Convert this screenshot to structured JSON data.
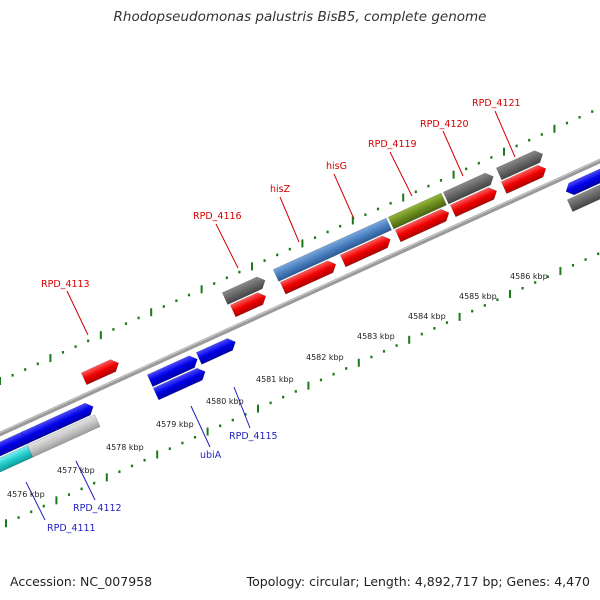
{
  "title": "Rhodopseudomonas palustris BisB5, complete genome",
  "accession": "Accession: NC_007958",
  "summary": "Topology: circular; Length: 4,892,717 bp; Genes: 4,470",
  "colors": {
    "forward_strand": "#e00000",
    "reverse_strand": "#0000dd",
    "hypothetical": "#666666",
    "hisZ": "#3a6fb0",
    "hisG_region": "#6b8c1e",
    "light_gene": "#bcbcbc",
    "cyan_gene": "#22cccc",
    "tick_green": "#1a7a1a",
    "backbone": "#888888",
    "label_red": "#d40000",
    "label_blue": "#1f1fbf"
  },
  "scale_labels": [
    "4576 kbp",
    "4577 kbp",
    "4578 kbp",
    "4579 kbp",
    "4580 kbp",
    "4581 kbp",
    "4582 kbp",
    "4583 kbp",
    "4584 kbp",
    "4585 kbp",
    "4586 kbp"
  ],
  "gene_labels_forward": [
    "RPD_4113",
    "RPD_4116",
    "hisZ",
    "hisG",
    "RPD_4119",
    "RPD_4120",
    "RPD_4121"
  ],
  "gene_labels_reverse": [
    "RPD_4111",
    "RPD_4112",
    "ubiA",
    "RPD_4115"
  ]
}
